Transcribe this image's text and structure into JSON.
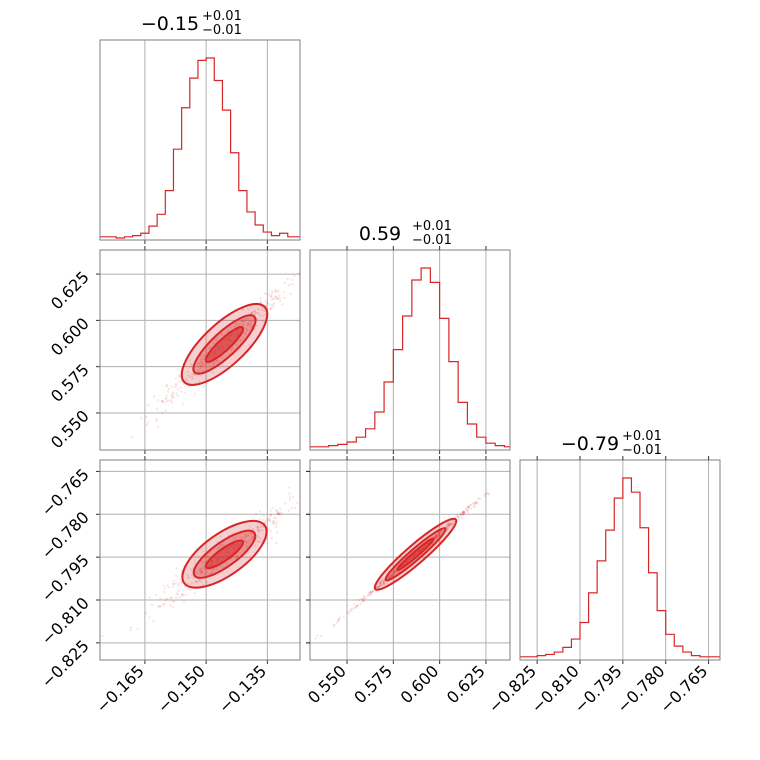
{
  "chart_data": {
    "type": "corner",
    "style": {
      "color": "#d62728",
      "grid": true
    },
    "parameters": [
      {
        "median": "−0.15",
        "plus": "+0.01",
        "minus": "−0.01",
        "range": [
          -0.176,
          -0.127
        ],
        "ticks": [
          -0.165,
          -0.15,
          -0.135
        ],
        "tick_labels": [
          "−0.165",
          "−0.150",
          "−0.135"
        ],
        "hist_edges": [
          -0.176,
          -0.174,
          -0.172,
          -0.17,
          -0.168,
          -0.166,
          -0.164,
          -0.162,
          -0.16,
          -0.158,
          -0.156,
          -0.154,
          -0.152,
          -0.15,
          -0.148,
          -0.146,
          -0.144,
          -0.142,
          -0.14,
          -0.138,
          -0.136,
          -0.134,
          -0.132,
          -0.13,
          -0.128,
          -0.127
        ],
        "hist_counts": [
          1,
          1,
          0,
          1,
          2,
          4,
          10,
          20,
          40,
          75,
          110,
          135,
          150,
          152,
          133,
          108,
          72,
          40,
          22,
          11,
          5,
          2,
          4,
          1,
          1
        ]
      },
      {
        "median": "0.59",
        "plus": "+0.01",
        "minus": "−0.01",
        "range": [
          0.53,
          0.638
        ],
        "ticks": [
          0.55,
          0.575,
          0.6,
          0.625
        ],
        "tick_labels": [
          "0.550",
          "0.575",
          "0.600",
          "0.625"
        ],
        "hist_edges": [
          0.53,
          0.535,
          0.54,
          0.545,
          0.55,
          0.555,
          0.56,
          0.565,
          0.57,
          0.575,
          0.58,
          0.585,
          0.59,
          0.595,
          0.6,
          0.605,
          0.61,
          0.615,
          0.62,
          0.625,
          0.63,
          0.635,
          0.638
        ],
        "hist_counts": [
          1,
          1,
          2,
          3,
          5,
          9,
          16,
          30,
          55,
          82,
          110,
          140,
          150,
          138,
          108,
          72,
          38,
          20,
          9,
          4,
          2,
          1
        ]
      },
      {
        "median": "−0.79",
        "plus": "+0.01",
        "minus": "−0.01",
        "range": [
          -0.831,
          -0.761
        ],
        "ticks": [
          -0.825,
          -0.81,
          -0.795,
          -0.78,
          -0.765
        ],
        "tick_labels": [
          "−0.825",
          "−0.810",
          "−0.795",
          "−0.780",
          "−0.765"
        ],
        "hist_edges": [
          -0.831,
          -0.828,
          -0.825,
          -0.822,
          -0.819,
          -0.816,
          -0.813,
          -0.81,
          -0.807,
          -0.804,
          -0.801,
          -0.798,
          -0.795,
          -0.792,
          -0.789,
          -0.786,
          -0.783,
          -0.78,
          -0.777,
          -0.774,
          -0.771,
          -0.768,
          -0.765,
          -0.762,
          -0.761
        ],
        "hist_counts": [
          1,
          1,
          2,
          3,
          5,
          9,
          16,
          30,
          55,
          82,
          108,
          135,
          152,
          140,
          110,
          72,
          40,
          20,
          10,
          5,
          2,
          1,
          1,
          1
        ]
      }
    ],
    "pairs": [
      {
        "x": 0,
        "y": 1,
        "slope": 2.05,
        "spread": 0.0028,
        "level_widths": [
          0.8,
          1.7,
          2.8
        ]
      },
      {
        "x": 0,
        "y": 2,
        "slope": 1.02,
        "spread": 0.002,
        "level_widths": [
          0.8,
          1.7,
          2.8
        ]
      },
      {
        "x": 1,
        "y": 2,
        "slope": 0.56,
        "spread": 0.0004,
        "level_widths": [
          0.8,
          1.7,
          2.8
        ]
      }
    ]
  }
}
